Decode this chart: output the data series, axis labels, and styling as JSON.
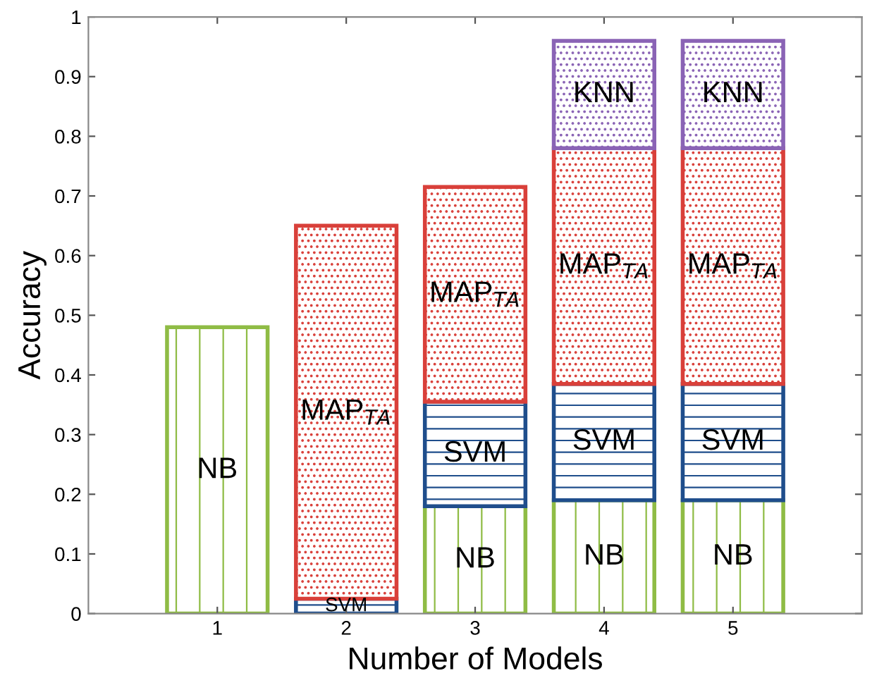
{
  "chart_data": {
    "type": "bar",
    "stacked": true,
    "xlabel": "Number of Models",
    "ylabel": "Accuracy",
    "categories": [
      "1",
      "2",
      "3",
      "4",
      "5"
    ],
    "series": [
      {
        "name": "NB",
        "color": "#8fbc45",
        "values": [
          0.48,
          null,
          0.18,
          0.19,
          0.19
        ]
      },
      {
        "name": "SVM",
        "color": "#1f4e8c",
        "values": [
          null,
          0.025,
          0.175,
          0.195,
          0.195
        ]
      },
      {
        "name": "MAP$_{TA}$",
        "color": "#d9403a",
        "values": [
          null,
          0.625,
          0.36,
          0.395,
          0.395
        ]
      },
      {
        "name": "KNN",
        "color": "#8a63b5",
        "values": [
          null,
          null,
          null,
          0.18,
          0.18
        ]
      }
    ],
    "ylim": [
      0,
      1
    ],
    "yticks": [
      0,
      0.1,
      0.2,
      0.3,
      0.4,
      0.5,
      0.6,
      0.7,
      0.8,
      0.9,
      1
    ],
    "grid": false,
    "legend": false
  }
}
